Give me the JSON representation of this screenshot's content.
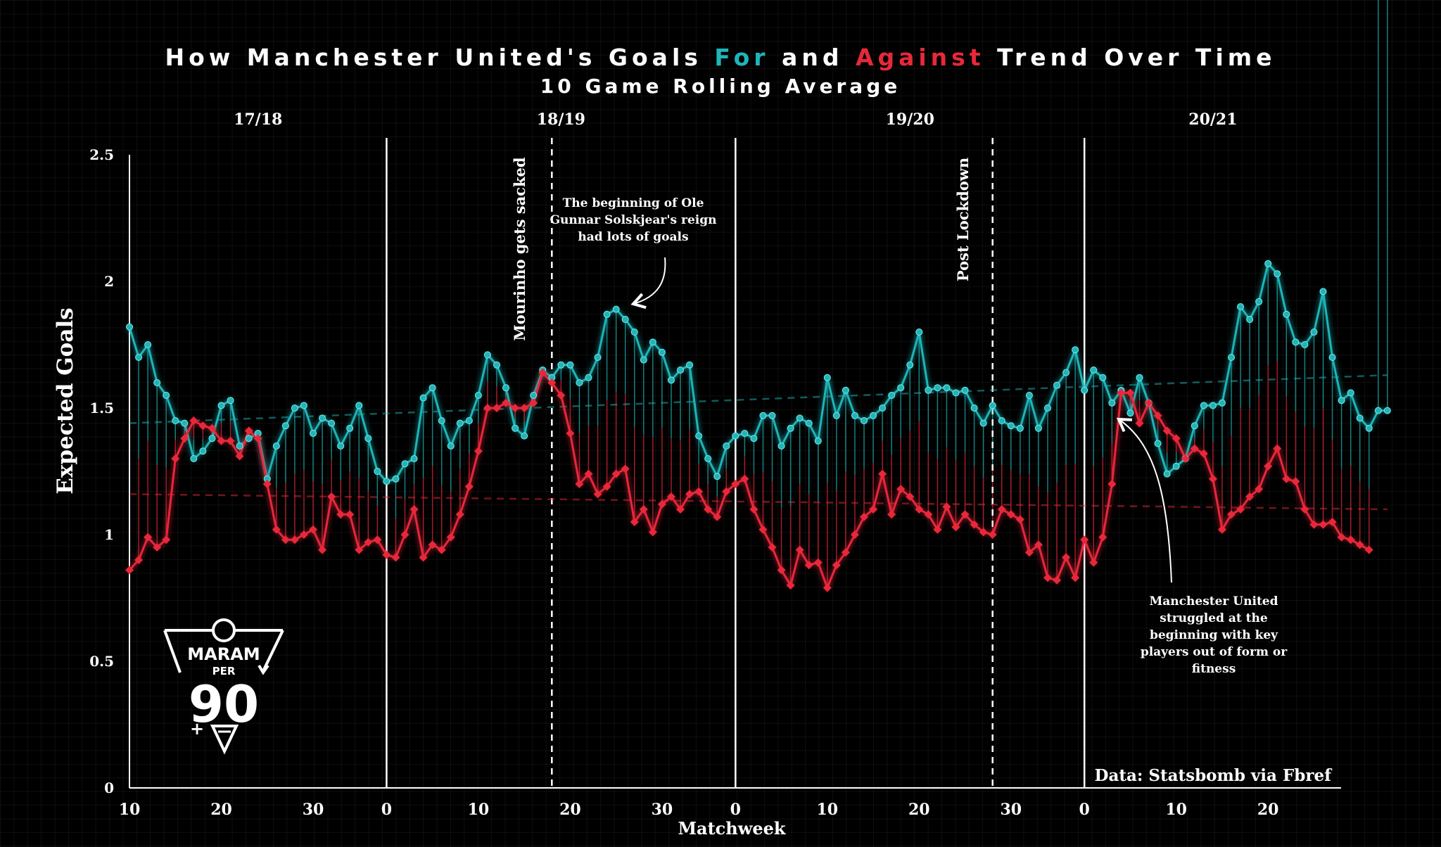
{
  "title": {
    "prefix": "How Manchester United's Goals ",
    "for_word": "For",
    "middle": " and ",
    "against_word": "Against",
    "suffix": " Trend Over Time"
  },
  "subtitle": "10 Game Rolling Average",
  "chart_data": {
    "type": "line",
    "ylabel": "Expected Goals",
    "xlabel": "Matchweek",
    "ylim": [
      0,
      2.5
    ],
    "y_ticks": [
      "0",
      "0.5",
      "1",
      "1.5",
      "2",
      "2.5"
    ],
    "grid": true,
    "seasons": [
      {
        "label": "17/18",
        "start_matchweek": 10,
        "end_matchweek": 38
      },
      {
        "label": "18/19",
        "start_matchweek": 0,
        "end_matchweek": 38
      },
      {
        "label": "19/20",
        "start_matchweek": 0,
        "end_matchweek": 38
      },
      {
        "label": "20/21",
        "start_matchweek": 0,
        "end_matchweek": 28
      }
    ],
    "x_tick_labels": [
      "10",
      "20",
      "30",
      "0",
      "10",
      "20",
      "30",
      "0",
      "10",
      "20",
      "30",
      "0",
      "10",
      "20"
    ],
    "events": [
      {
        "label": "Mourinho gets sacked",
        "season": "18/19",
        "matchweek": 18
      },
      {
        "label": "Post Lockdown",
        "season": "19/20",
        "matchweek": 28
      }
    ],
    "series": [
      {
        "name": "For",
        "color": "#1fb5b8",
        "trend": [
          1.44,
          1.63
        ],
        "values": [
          1.82,
          1.7,
          1.75,
          1.6,
          1.55,
          1.45,
          1.44,
          1.3,
          1.33,
          1.38,
          1.51,
          1.53,
          1.35,
          1.38,
          1.4,
          1.22,
          1.35,
          1.43,
          1.5,
          1.51,
          1.4,
          1.46,
          1.44,
          1.35,
          1.42,
          1.51,
          1.38,
          1.25,
          1.21,
          1.22,
          1.28,
          1.3,
          1.54,
          1.58,
          1.45,
          1.35,
          1.44,
          1.45,
          1.55,
          1.71,
          1.67,
          1.58,
          1.42,
          1.39,
          1.55,
          1.65,
          1.62,
          1.67,
          1.67,
          1.6,
          1.62,
          1.7,
          1.87,
          1.89,
          1.85,
          1.8,
          1.69,
          1.76,
          1.72,
          1.61,
          1.65,
          1.67,
          1.39,
          1.3,
          1.23,
          1.35,
          1.39,
          1.4,
          1.38,
          1.47,
          1.47,
          1.35,
          1.42,
          1.46,
          1.44,
          1.37,
          1.62,
          1.47,
          1.57,
          1.47,
          1.45,
          1.47,
          1.5,
          1.55,
          1.58,
          1.67,
          1.8,
          1.57,
          1.58,
          1.58,
          1.56,
          1.57,
          1.5,
          1.44,
          1.51,
          1.45,
          1.43,
          1.42,
          1.55,
          1.42,
          1.5,
          1.59,
          1.64,
          1.73,
          1.57,
          1.65,
          1.62,
          1.52,
          1.57,
          1.48,
          1.62,
          1.52,
          1.36,
          1.24,
          1.27,
          1.3,
          1.43,
          1.51,
          1.51,
          1.52,
          1.7,
          1.9,
          1.85,
          1.92,
          2.07,
          2.03,
          1.87,
          1.76,
          1.75,
          1.8,
          1.96,
          1.7,
          1.53,
          1.56,
          1.46,
          1.42,
          1.49,
          1.49
        ]
      },
      {
        "name": "Against",
        "color": "#e8283a",
        "trend": [
          1.16,
          1.1
        ],
        "values": [
          0.86,
          0.9,
          0.99,
          0.95,
          0.98,
          1.3,
          1.38,
          1.45,
          1.43,
          1.42,
          1.37,
          1.37,
          1.31,
          1.41,
          1.38,
          1.2,
          1.02,
          0.98,
          0.98,
          1.0,
          1.02,
          0.94,
          1.15,
          1.08,
          1.08,
          0.94,
          0.97,
          0.98,
          0.92,
          0.91,
          1.0,
          1.1,
          0.91,
          0.96,
          0.94,
          0.99,
          1.08,
          1.19,
          1.33,
          1.5,
          1.5,
          1.52,
          1.5,
          1.5,
          1.52,
          1.64,
          1.6,
          1.55,
          1.4,
          1.2,
          1.24,
          1.16,
          1.19,
          1.24,
          1.26,
          1.05,
          1.1,
          1.01,
          1.12,
          1.15,
          1.1,
          1.16,
          1.17,
          1.1,
          1.07,
          1.17,
          1.2,
          1.22,
          1.1,
          1.02,
          0.95,
          0.86,
          0.8,
          0.94,
          0.88,
          0.89,
          0.79,
          0.88,
          0.93,
          1.0,
          1.07,
          1.1,
          1.24,
          1.08,
          1.18,
          1.15,
          1.1,
          1.08,
          1.02,
          1.11,
          1.03,
          1.08,
          1.04,
          1.01,
          1.0,
          1.1,
          1.08,
          1.06,
          0.93,
          0.96,
          0.83,
          0.82,
          0.91,
          0.83,
          0.98,
          0.89,
          0.99,
          1.2,
          1.56,
          1.56,
          1.44,
          1.52,
          1.47,
          1.41,
          1.38,
          1.3,
          1.34,
          1.32,
          1.22,
          1.02,
          1.08,
          1.1,
          1.15,
          1.18,
          1.27,
          1.34,
          1.22,
          1.21,
          1.1,
          1.04,
          1.04,
          1.05,
          0.99,
          0.98,
          0.96,
          0.94
        ]
      }
    ]
  },
  "annotations": {
    "ole": [
      "The beginning of Ole",
      "Gunnar Solskjear's reign",
      "had lots of goals"
    ],
    "struggle": [
      "Manchester United",
      "struggled at the",
      "beginning with key",
      "players out of form or",
      "fitness"
    ],
    "source": "Data: Statsbomb via Fbref"
  },
  "logo": {
    "line1": "MARAM",
    "line2": "PER",
    "line3": "90"
  }
}
